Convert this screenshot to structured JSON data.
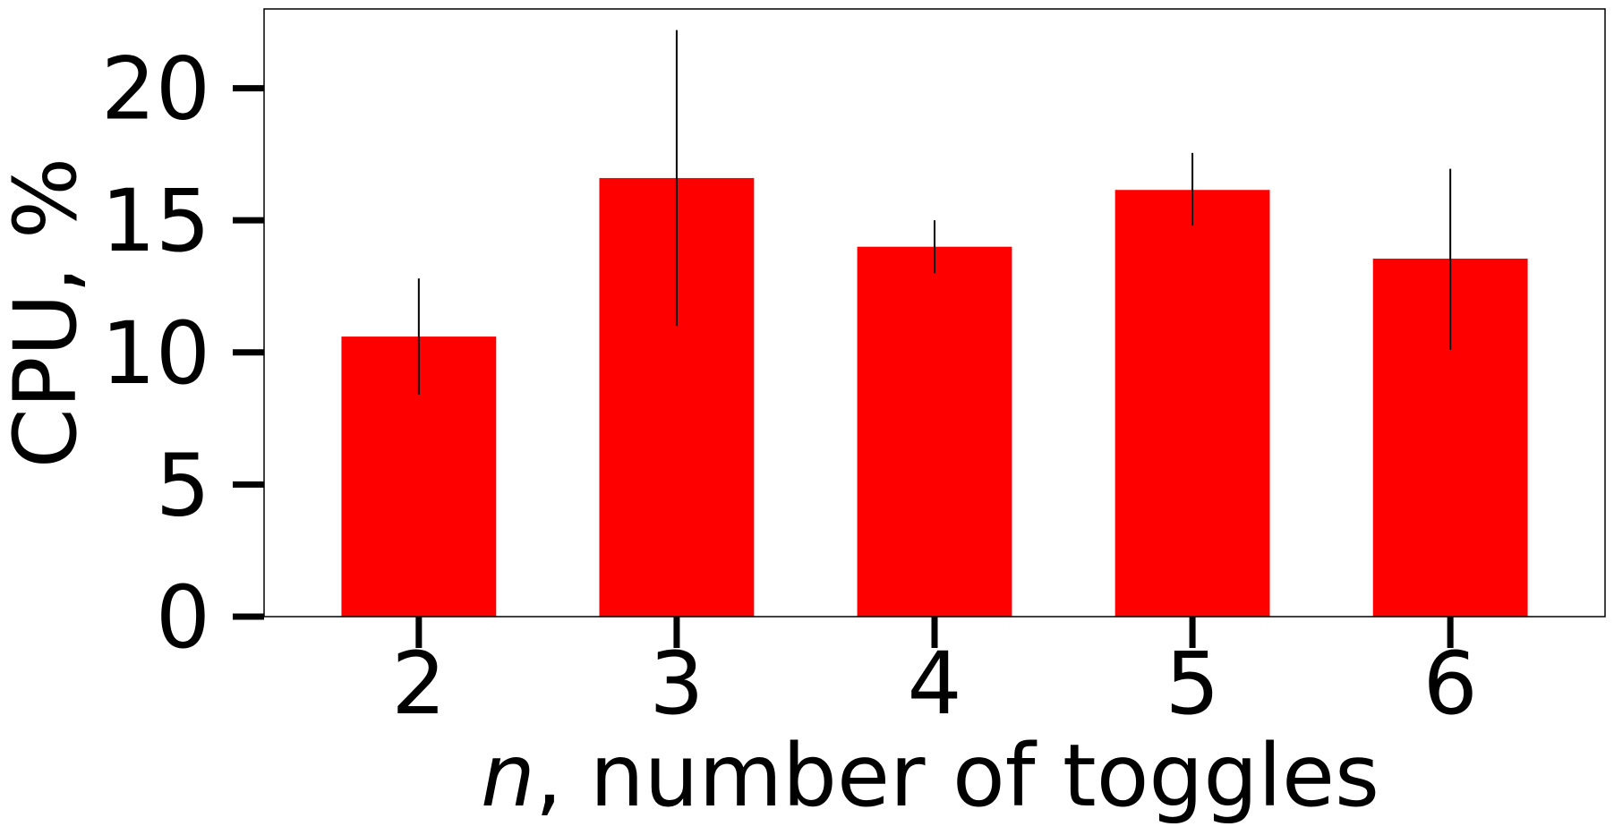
{
  "chart_data": {
    "type": "bar",
    "categories": [
      "2",
      "3",
      "4",
      "5",
      "6"
    ],
    "values": [
      10.6,
      16.6,
      14.0,
      16.15,
      13.55
    ],
    "error_bars": [
      {
        "low": 8.4,
        "high": 12.8
      },
      {
        "low": 11.0,
        "high": 22.2
      },
      {
        "low": 13.0,
        "high": 15.0
      },
      {
        "low": 14.8,
        "high": 17.55
      },
      {
        "low": 10.1,
        "high": 16.95
      }
    ],
    "title": "",
    "xlabel": {
      "italic": "n",
      "rest": ", number of toggles"
    },
    "ylabel": "CPU, %",
    "ylim": [
      0,
      23
    ],
    "yticks": [
      "0",
      "5",
      "10",
      "15",
      "20"
    ],
    "ytick_values": [
      0,
      5,
      10,
      15,
      20
    ],
    "grid": false,
    "bar_color": "#ff0000",
    "error_color": "#000000"
  }
}
